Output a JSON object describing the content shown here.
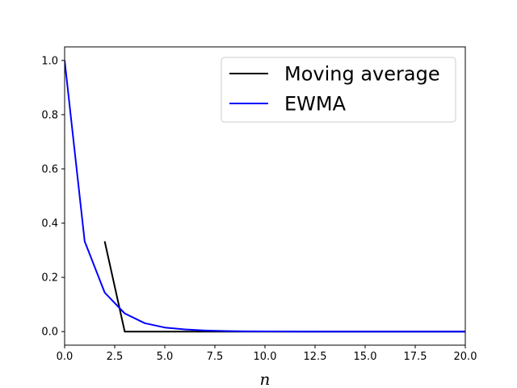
{
  "chart_data": {
    "type": "line",
    "title": "",
    "xlabel": "n",
    "ylabel": "",
    "xlim": [
      0,
      20
    ],
    "ylim": [
      -0.05,
      1.05
    ],
    "xticks": [
      0,
      2.5,
      5,
      7.5,
      10,
      12.5,
      15,
      17.5,
      20
    ],
    "xtick_labels": [
      "0.0",
      "2.5",
      "5.0",
      "7.5",
      "10.0",
      "12.5",
      "15.0",
      "17.5",
      "20.0"
    ],
    "yticks": [
      0,
      0.2,
      0.4,
      0.6,
      0.8,
      1.0
    ],
    "ytick_labels": [
      "0.0",
      "0.2",
      "0.4",
      "0.6",
      "0.8",
      "1.0"
    ],
    "grid": false,
    "legend_position": "top-right",
    "series": [
      {
        "name": "Moving average",
        "color": "#000000",
        "x": [
          2,
          3,
          4,
          5,
          6,
          7,
          8,
          9,
          10,
          11,
          12,
          13,
          14,
          15,
          16,
          17,
          18,
          19,
          20
        ],
        "y": [
          0.333,
          0,
          0,
          0,
          0,
          0,
          0,
          0,
          0,
          0,
          0,
          0,
          0,
          0,
          0,
          0,
          0,
          0,
          0
        ]
      },
      {
        "name": "EWMA",
        "color": "#0000ff",
        "x": [
          0,
          1,
          2,
          3,
          4,
          5,
          6,
          7,
          8,
          9,
          10,
          11,
          12,
          13,
          14,
          15,
          16,
          17,
          18,
          19,
          20
        ],
        "y": [
          1.0,
          0.333,
          0.144,
          0.067,
          0.031,
          0.015,
          0.008,
          0.004,
          0.002,
          0.001,
          0.0005,
          0.0002,
          0.0001,
          0,
          0,
          0,
          0,
          0,
          0,
          0,
          0
        ]
      }
    ]
  }
}
